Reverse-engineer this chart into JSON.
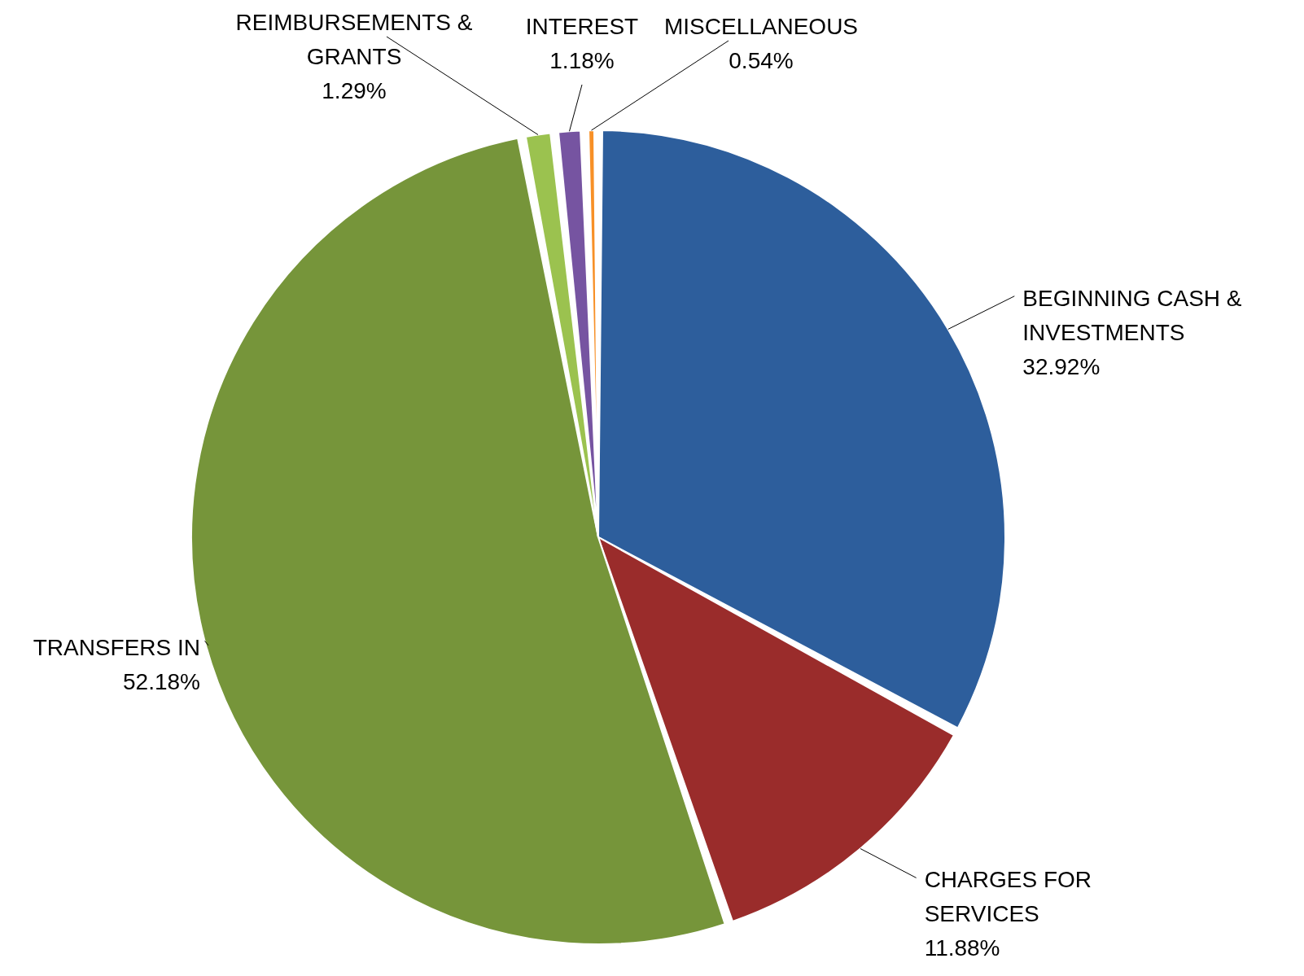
{
  "chart_data": {
    "type": "pie",
    "categories": [
      "BEGINNING CASH & INVESTMENTS",
      "CHARGES FOR SERVICES",
      "TRANSFERS IN",
      "REIMBURSEMENTS & GRANTS",
      "INTEREST",
      "MISCELLANEOUS"
    ],
    "values": [
      32.92,
      11.88,
      52.18,
      1.29,
      1.18,
      0.54
    ],
    "value_labels": [
      "32.92%",
      "11.88%",
      "52.18%",
      "1.29%",
      "1.18%",
      "0.54%"
    ],
    "colors": [
      "#2d5e9c",
      "#9a2c2b",
      "#76953a",
      "#9bc24f",
      "#7654a1",
      "#f79027"
    ]
  }
}
